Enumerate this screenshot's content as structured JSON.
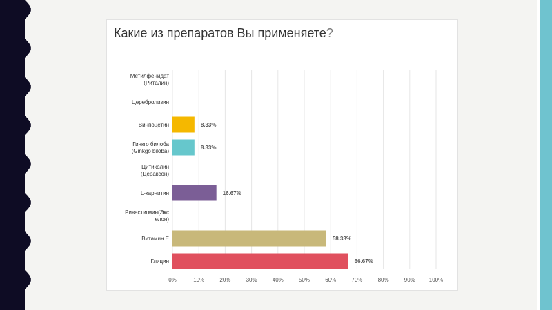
{
  "slide": {
    "accent_dark": "#0e0c24",
    "accent_teal": "#6fc3cf"
  },
  "chart_data": {
    "type": "bar",
    "orientation": "horizontal",
    "title": "Какие из препаратов Вы применяете",
    "title_suffix": "?",
    "categories": [
      "Метилфенидат (Риталин)",
      "Церебролизин",
      "Винпоцетин",
      "Гинкго билоба (Ginkgo biloba)",
      "Цитиколин (Цераксон)",
      "L-карнитин",
      "Ривастигмин(Экселон)",
      "Витамин Е",
      "Глицин"
    ],
    "category_lines": [
      [
        "Метилфенидат",
        "(Риталин)"
      ],
      [
        "Церебролизин"
      ],
      [
        "Винпоцетин"
      ],
      [
        "Гинкго билоба",
        "(Ginkgo biloba)"
      ],
      [
        "Цитиколин",
        "(Цераксон)"
      ],
      [
        "L-карнитин"
      ],
      [
        "Ривастигмин(Экс",
        "елон)"
      ],
      [
        "Витамин Е"
      ],
      [
        "Глицин"
      ]
    ],
    "values": [
      null,
      null,
      8.33,
      8.33,
      null,
      16.67,
      null,
      58.33,
      66.67
    ],
    "value_labels": [
      "",
      "",
      "8.33%",
      "8.33%",
      "",
      "16.67%",
      "",
      "58.33%",
      "66.67%"
    ],
    "colors": [
      "#b0b0b0",
      "#b0b0b0",
      "#f5b800",
      "#66c7cc",
      "#b0b0b0",
      "#7b5e96",
      "#b0b0b0",
      "#c8b87a",
      "#e0505e"
    ],
    "xlim": [
      0,
      100
    ],
    "x_ticks": [
      "0%",
      "10%",
      "20%",
      "30%",
      "40%",
      "50%",
      "60%",
      "70%",
      "80%",
      "90%",
      "100%"
    ],
    "xlabel": "",
    "ylabel": "",
    "grid": true,
    "legend": "none"
  }
}
